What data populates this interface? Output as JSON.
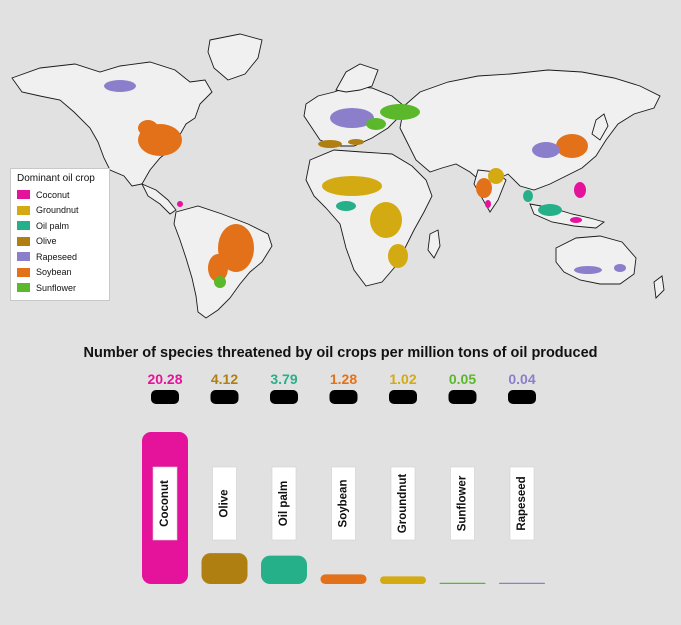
{
  "legend": {
    "title": "Dominant oil crop",
    "items": [
      {
        "label": "Coconut",
        "color": "#e5139b"
      },
      {
        "label": "Groundnut",
        "color": "#d4aa12"
      },
      {
        "label": "Oil palm",
        "color": "#25b08a"
      },
      {
        "label": "Olive",
        "color": "#b07f12"
      },
      {
        "label": "Rapeseed",
        "color": "#8b7fcc"
      },
      {
        "label": "Soybean",
        "color": "#e2711a"
      },
      {
        "label": "Sunflower",
        "color": "#5bb82b"
      }
    ]
  },
  "chart_data": {
    "type": "bar",
    "title": "Number of species threatened by oil crops per million tons of oil produced",
    "categories": [
      "Coconut",
      "Olive",
      "Oil palm",
      "Soybean",
      "Groundnut",
      "Sunflower",
      "Rapeseed"
    ],
    "values": [
      20.28,
      4.12,
      3.79,
      1.28,
      1.02,
      0.05,
      0.04
    ],
    "value_labels": [
      "20.28",
      "4.12",
      "3.79",
      "1.28",
      "1.02",
      "0.05",
      "0.04"
    ],
    "colors": [
      "#e5139b",
      "#b07f12",
      "#25b08a",
      "#e2711a",
      "#d4aa12",
      "#5bb82b",
      "#8b7fcc"
    ],
    "ylim": [
      0,
      20.28
    ],
    "xlabel": "",
    "ylabel": "",
    "grid": false
  }
}
